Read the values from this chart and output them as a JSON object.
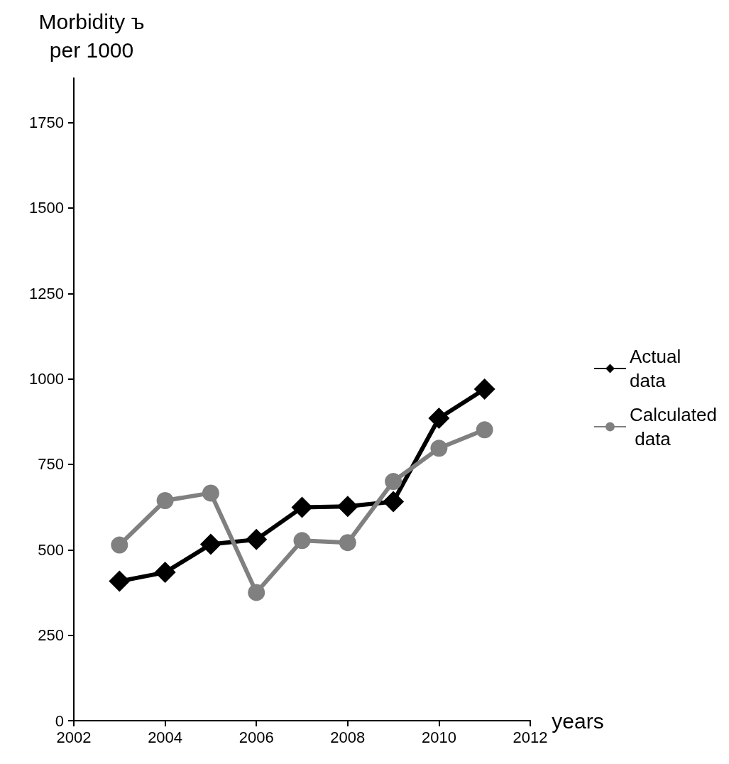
{
  "chart_data": {
    "type": "line",
    "ylabel": "Morbidity ъ\nper 1000",
    "xlabel": "years",
    "x": [
      2003,
      2004,
      2005,
      2006,
      2007,
      2008,
      2009,
      2010,
      2011
    ],
    "series": [
      {
        "name": "Actual data",
        "color": "#000000",
        "marker": "diamond",
        "values": [
          408,
          434,
          516,
          530,
          624,
          627,
          641,
          885,
          970
        ]
      },
      {
        "name": "Calculated data",
        "color": "#808080",
        "marker": "circle",
        "values": [
          514,
          644,
          666,
          375,
          527,
          521,
          700,
          797,
          851
        ]
      }
    ],
    "xlim": [
      2002,
      2012
    ],
    "xticks": [
      2002,
      2004,
      2006,
      2008,
      2010,
      2012
    ],
    "ylim": [
      0,
      1880
    ],
    "yticks": [
      0,
      250,
      500,
      750,
      1000,
      1250,
      1500,
      1750
    ],
    "grid": false,
    "legend": "right",
    "line_style": "solid"
  }
}
